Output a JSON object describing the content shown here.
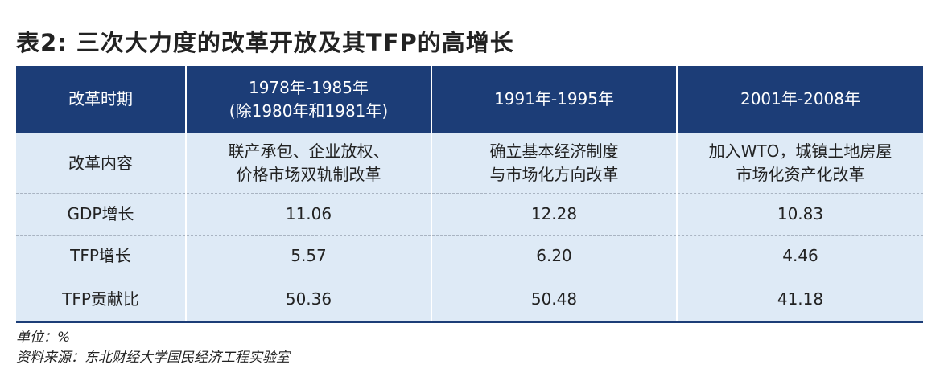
{
  "title": "表2: 三次大力度的改革开放及其TFP的高增长",
  "table": {
    "headers": [
      {
        "lines": [
          "改革时期"
        ]
      },
      {
        "lines": [
          "1978年-1985年",
          "(除1980年和1981年)"
        ]
      },
      {
        "lines": [
          "1991年-1995年"
        ]
      },
      {
        "lines": [
          "2001年-2008年"
        ]
      }
    ],
    "rows": [
      {
        "label": "改革内容",
        "cells": [
          [
            "联产承包、企业放权、",
            "价格市场双轨制改革"
          ],
          [
            "确立基本经济制度",
            "与市场化方向改革"
          ],
          [
            "加入WTO，城镇土地房屋",
            "市场化资产化改革"
          ]
        ]
      },
      {
        "label": "GDP增长",
        "cells": [
          [
            "11.06"
          ],
          [
            "12.28"
          ],
          [
            "10.83"
          ]
        ]
      },
      {
        "label": "TFP增长",
        "cells": [
          [
            "5.57"
          ],
          [
            "6.20"
          ],
          [
            "4.46"
          ]
        ]
      },
      {
        "label": "TFP贡献比",
        "cells": [
          [
            "50.36"
          ],
          [
            "50.48"
          ],
          [
            "41.18"
          ]
        ]
      }
    ]
  },
  "notes": {
    "unit": "单位：%",
    "source": "资料来源：东北财经大学国民经济工程实验室"
  },
  "colors": {
    "header_bg": "#1c3d77",
    "row_bg": "#deeaf6"
  }
}
